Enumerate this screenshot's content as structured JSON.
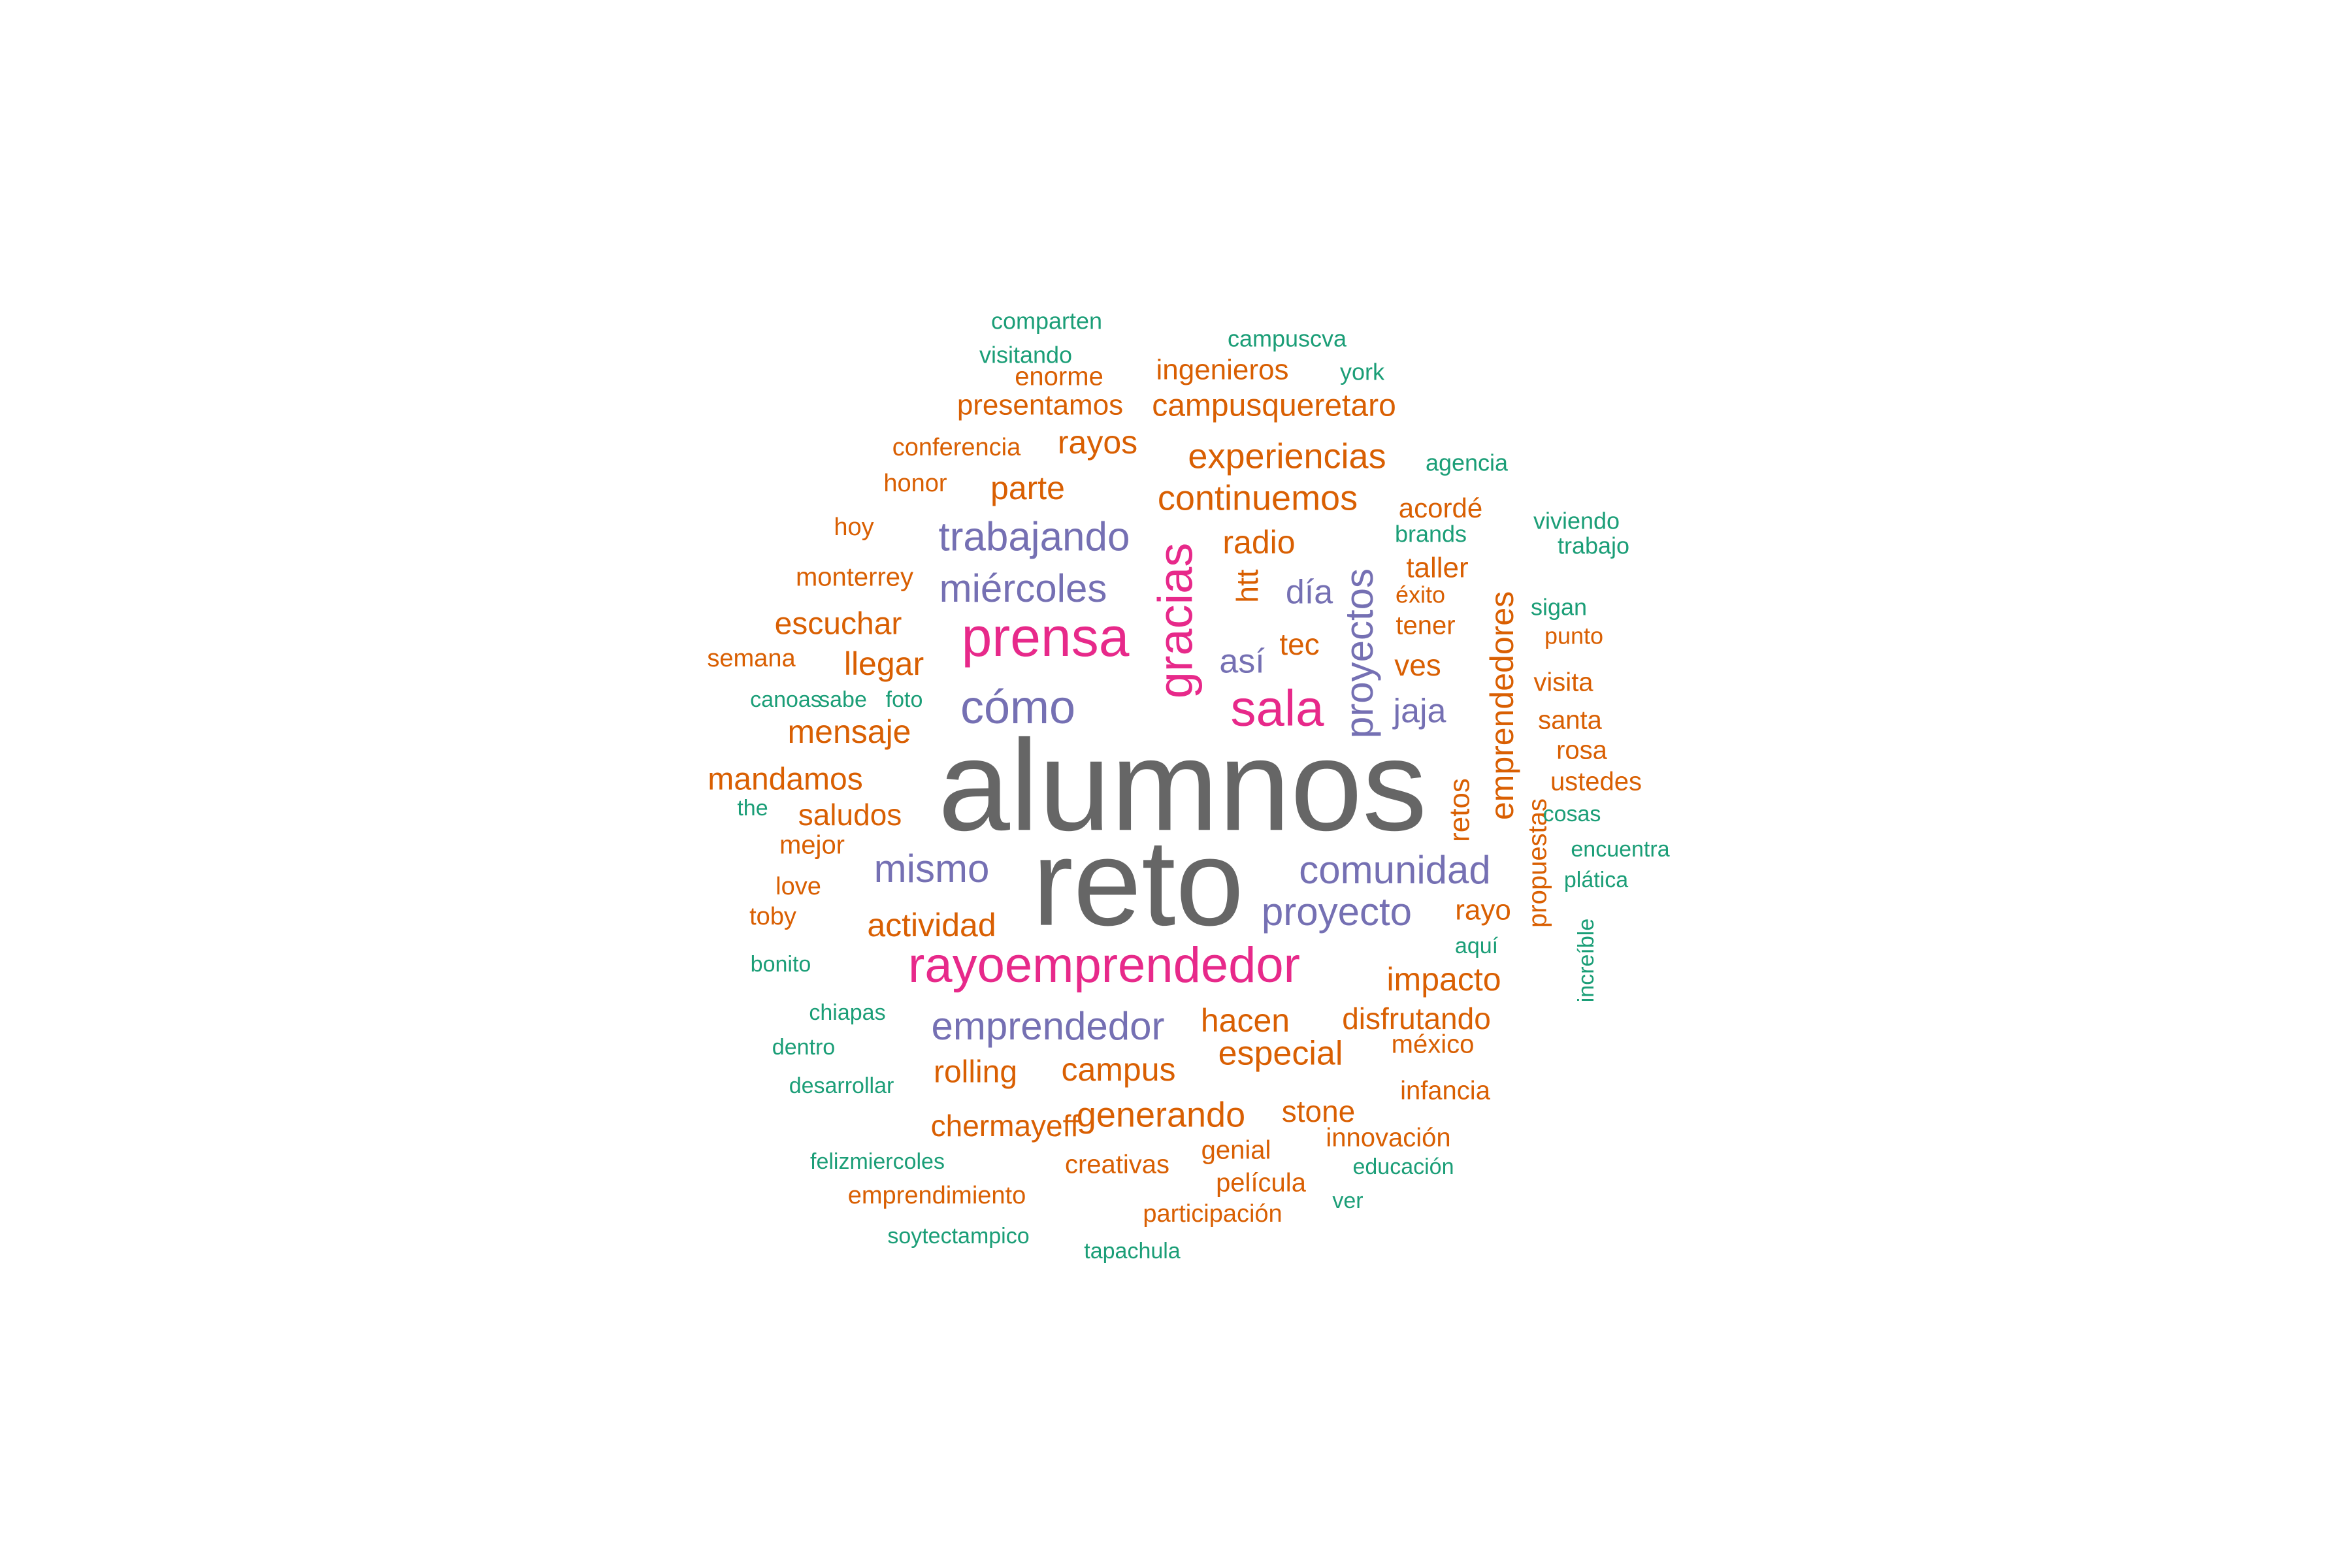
{
  "chart_data": {
    "type": "wordcloud",
    "palette": {
      "gray": "#666666",
      "magenta": "#e7298a",
      "purple": "#7570b3",
      "orange": "#d95f02",
      "teal": "#1b9e77"
    },
    "words": [
      {
        "text": "alumnos",
        "color": "gray",
        "weight": 100,
        "vertical": false
      },
      {
        "text": "reto",
        "color": "gray",
        "weight": 100,
        "vertical": false
      },
      {
        "text": "rayoemprendedor",
        "color": "magenta",
        "weight": 40,
        "vertical": false
      },
      {
        "text": "prensa",
        "color": "magenta",
        "weight": 40,
        "vertical": false
      },
      {
        "text": "sala",
        "color": "magenta",
        "weight": 40,
        "vertical": false
      },
      {
        "text": "gracias",
        "color": "magenta",
        "weight": 40,
        "vertical": true
      },
      {
        "text": "cómo",
        "color": "purple",
        "weight": 30,
        "vertical": false
      },
      {
        "text": "trabajando",
        "color": "purple",
        "weight": 26,
        "vertical": false
      },
      {
        "text": "miércoles",
        "color": "purple",
        "weight": 26,
        "vertical": false
      },
      {
        "text": "proyectos",
        "color": "purple",
        "weight": 26,
        "vertical": true
      },
      {
        "text": "proyecto",
        "color": "purple",
        "weight": 26,
        "vertical": false
      },
      {
        "text": "comunidad",
        "color": "purple",
        "weight": 26,
        "vertical": false
      },
      {
        "text": "mismo",
        "color": "purple",
        "weight": 26,
        "vertical": false
      },
      {
        "text": "emprendedor",
        "color": "purple",
        "weight": 26,
        "vertical": false
      },
      {
        "text": "día",
        "color": "purple",
        "weight": 24,
        "vertical": false
      },
      {
        "text": "así",
        "color": "purple",
        "weight": 24,
        "vertical": false
      },
      {
        "text": "jaja",
        "color": "purple",
        "weight": 24,
        "vertical": false
      },
      {
        "text": "experiencias",
        "color": "orange",
        "weight": 22,
        "vertical": false
      },
      {
        "text": "continuemos",
        "color": "orange",
        "weight": 22,
        "vertical": false
      },
      {
        "text": "impacto",
        "color": "orange",
        "weight": 22,
        "vertical": false
      },
      {
        "text": "actividad",
        "color": "orange",
        "weight": 22,
        "vertical": false
      },
      {
        "text": "mensaje",
        "color": "orange",
        "weight": 22,
        "vertical": false
      },
      {
        "text": "especial",
        "color": "orange",
        "weight": 22,
        "vertical": false
      },
      {
        "text": "generando",
        "color": "orange",
        "weight": 22,
        "vertical": false
      },
      {
        "text": "campus",
        "color": "orange",
        "weight": 22,
        "vertical": false
      },
      {
        "text": "hacen",
        "color": "orange",
        "weight": 22,
        "vertical": false
      },
      {
        "text": "rayos",
        "color": "orange",
        "weight": 22,
        "vertical": false
      },
      {
        "text": "parte",
        "color": "orange",
        "weight": 22,
        "vertical": false
      },
      {
        "text": "radio",
        "color": "orange",
        "weight": 22,
        "vertical": false
      },
      {
        "text": "llegar",
        "color": "orange",
        "weight": 22,
        "vertical": false
      },
      {
        "text": "emprendedores",
        "color": "orange",
        "weight": 22,
        "vertical": true
      },
      {
        "text": "escuchar",
        "color": "orange",
        "weight": 20,
        "vertical": false
      },
      {
        "text": "saludos",
        "color": "orange",
        "weight": 20,
        "vertical": false
      },
      {
        "text": "mandamos",
        "color": "orange",
        "weight": 20,
        "vertical": false
      },
      {
        "text": "disfrutando",
        "color": "orange",
        "weight": 20,
        "vertical": false
      },
      {
        "text": "rolling",
        "color": "orange",
        "weight": 20,
        "vertical": false
      },
      {
        "text": "stone",
        "color": "orange",
        "weight": 20,
        "vertical": false
      },
      {
        "text": "campusqueretaro",
        "color": "orange",
        "weight": 20,
        "vertical": false
      },
      {
        "text": "presentamos",
        "color": "orange",
        "weight": 20,
        "vertical": false
      },
      {
        "text": "tec",
        "color": "orange",
        "weight": 20,
        "vertical": false
      },
      {
        "text": "htt",
        "color": "orange",
        "weight": 20,
        "vertical": true
      },
      {
        "text": "retos",
        "color": "orange",
        "weight": 20,
        "vertical": true
      },
      {
        "text": "chermayeff",
        "color": "orange",
        "weight": 20,
        "vertical": false
      },
      {
        "text": "ves",
        "color": "orange",
        "weight": 20,
        "vertical": false
      },
      {
        "text": "taller",
        "color": "orange",
        "weight": 20,
        "vertical": false
      },
      {
        "text": "rayo",
        "color": "orange",
        "weight": 20,
        "vertical": false
      },
      {
        "text": "acordé",
        "color": "orange",
        "weight": 20,
        "vertical": false
      },
      {
        "text": "ingenieros",
        "color": "orange",
        "weight": 18,
        "vertical": false
      },
      {
        "text": "enorme",
        "color": "orange",
        "weight": 18,
        "vertical": false
      },
      {
        "text": "tener",
        "color": "orange",
        "weight": 18,
        "vertical": false
      },
      {
        "text": "visita",
        "color": "orange",
        "weight": 18,
        "vertical": false
      },
      {
        "text": "santa",
        "color": "orange",
        "weight": 18,
        "vertical": false
      },
      {
        "text": "rosa",
        "color": "orange",
        "weight": 18,
        "vertical": false
      },
      {
        "text": "ustedes",
        "color": "orange",
        "weight": 18,
        "vertical": false
      },
      {
        "text": "propuestas",
        "color": "orange",
        "weight": 18,
        "vertical": true
      },
      {
        "text": "infancia",
        "color": "orange",
        "weight": 18,
        "vertical": false
      },
      {
        "text": "innovación",
        "color": "orange",
        "weight": 18,
        "vertical": false
      },
      {
        "text": "creativas",
        "color": "orange",
        "weight": 18,
        "vertical": false
      },
      {
        "text": "genial",
        "color": "orange",
        "weight": 18,
        "vertical": false
      },
      {
        "text": "película",
        "color": "orange",
        "weight": 18,
        "vertical": false
      },
      {
        "text": "monterrey",
        "color": "orange",
        "weight": 18,
        "vertical": false
      },
      {
        "text": "mejor",
        "color": "orange",
        "weight": 18,
        "vertical": false
      },
      {
        "text": "méxico",
        "color": "orange",
        "weight": 18,
        "vertical": false
      },
      {
        "text": "punto",
        "color": "orange",
        "weight": 16,
        "vertical": false
      },
      {
        "text": "éxito",
        "color": "orange",
        "weight": 16,
        "vertical": false
      },
      {
        "text": "conferencia",
        "color": "orange",
        "weight": 16,
        "vertical": false
      },
      {
        "text": "honor",
        "color": "orange",
        "weight": 16,
        "vertical": false
      },
      {
        "text": "hoy",
        "color": "orange",
        "weight": 16,
        "vertical": false
      },
      {
        "text": "semana",
        "color": "orange",
        "weight": 16,
        "vertical": false
      },
      {
        "text": "love",
        "color": "orange",
        "weight": 16,
        "vertical": false
      },
      {
        "text": "toby",
        "color": "orange",
        "weight": 16,
        "vertical": false
      },
      {
        "text": "emprendimiento",
        "color": "orange",
        "weight": 16,
        "vertical": false
      },
      {
        "text": "participación",
        "color": "orange",
        "weight": 16,
        "vertical": false
      },
      {
        "text": "comparten",
        "color": "teal",
        "weight": 14,
        "vertical": false
      },
      {
        "text": "campuscva",
        "color": "teal",
        "weight": 14,
        "vertical": false
      },
      {
        "text": "visitando",
        "color": "teal",
        "weight": 14,
        "vertical": false
      },
      {
        "text": "york",
        "color": "teal",
        "weight": 14,
        "vertical": false
      },
      {
        "text": "agencia",
        "color": "teal",
        "weight": 14,
        "vertical": false
      },
      {
        "text": "viviendo",
        "color": "teal",
        "weight": 14,
        "vertical": false
      },
      {
        "text": "brands",
        "color": "teal",
        "weight": 14,
        "vertical": false
      },
      {
        "text": "trabajo",
        "color": "teal",
        "weight": 14,
        "vertical": false
      },
      {
        "text": "sigan",
        "color": "teal",
        "weight": 14,
        "vertical": false
      },
      {
        "text": "canoas",
        "color": "teal",
        "weight": 14,
        "vertical": false
      },
      {
        "text": "sabe",
        "color": "teal",
        "weight": 14,
        "vertical": false
      },
      {
        "text": "foto",
        "color": "teal",
        "weight": 14,
        "vertical": false
      },
      {
        "text": "the",
        "color": "teal",
        "weight": 14,
        "vertical": false
      },
      {
        "text": "cosas",
        "color": "teal",
        "weight": 14,
        "vertical": false
      },
      {
        "text": "encuentra",
        "color": "teal",
        "weight": 14,
        "vertical": false
      },
      {
        "text": "plática",
        "color": "teal",
        "weight": 14,
        "vertical": false
      },
      {
        "text": "increíble",
        "color": "teal",
        "weight": 14,
        "vertical": true
      },
      {
        "text": "aquí",
        "color": "teal",
        "weight": 14,
        "vertical": false
      },
      {
        "text": "bonito",
        "color": "teal",
        "weight": 14,
        "vertical": false
      },
      {
        "text": "chiapas",
        "color": "teal",
        "weight": 14,
        "vertical": false
      },
      {
        "text": "dentro",
        "color": "teal",
        "weight": 14,
        "vertical": false
      },
      {
        "text": "desarrollar",
        "color": "teal",
        "weight": 14,
        "vertical": false
      },
      {
        "text": "felizmiercoles",
        "color": "teal",
        "weight": 14,
        "vertical": false
      },
      {
        "text": "educación",
        "color": "teal",
        "weight": 14,
        "vertical": false
      },
      {
        "text": "ver",
        "color": "teal",
        "weight": 14,
        "vertical": false
      },
      {
        "text": "soytectampico",
        "color": "teal",
        "weight": 14,
        "vertical": false
      },
      {
        "text": "tapachula",
        "color": "teal",
        "weight": 14,
        "vertical": false
      }
    ]
  }
}
